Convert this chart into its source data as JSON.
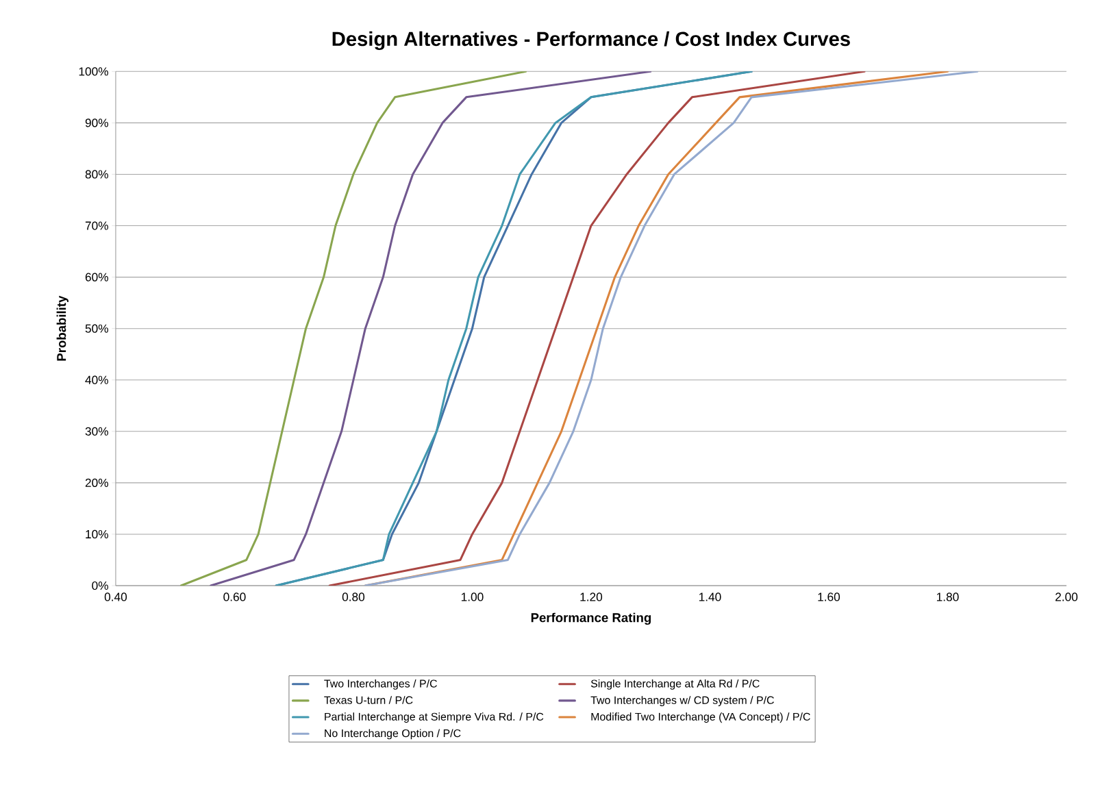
{
  "chart_data": {
    "type": "line",
    "title": "Design Alternatives - Performance / Cost Index Curves",
    "xlabel": "Performance Rating",
    "ylabel": "Probability",
    "xlim": [
      0.4,
      2.0
    ],
    "ylim": [
      0,
      100
    ],
    "xticks": [
      {
        "value": 0.4,
        "label": "0.40"
      },
      {
        "value": 0.6,
        "label": "0.60"
      },
      {
        "value": 0.8,
        "label": "0.80"
      },
      {
        "value": 1.0,
        "label": "1.00"
      },
      {
        "value": 1.2,
        "label": "1.20"
      },
      {
        "value": 1.4,
        "label": "1.40"
      },
      {
        "value": 1.6,
        "label": "1.60"
      },
      {
        "value": 1.8,
        "label": "1.80"
      },
      {
        "value": 2.0,
        "label": "2.00"
      }
    ],
    "yticks": [
      {
        "value": 0,
        "label": "0%"
      },
      {
        "value": 10,
        "label": "10%"
      },
      {
        "value": 20,
        "label": "20%"
      },
      {
        "value": 30,
        "label": "30%"
      },
      {
        "value": 40,
        "label": "40%"
      },
      {
        "value": 50,
        "label": "50%"
      },
      {
        "value": 60,
        "label": "60%"
      },
      {
        "value": 70,
        "label": "70%"
      },
      {
        "value": 80,
        "label": "80%"
      },
      {
        "value": 90,
        "label": "90%"
      },
      {
        "value": 100,
        "label": "100%"
      }
    ],
    "grid": "y",
    "legend": "bottom",
    "marker": "none",
    "line_style": "solid",
    "series": [
      {
        "name": "Two Interchanges / P/C",
        "color": "#4572a7",
        "x": [
          0.67,
          0.85,
          0.865,
          0.91,
          0.94,
          0.97,
          1.0,
          1.02,
          1.06,
          1.1,
          1.15,
          1.2,
          1.47
        ],
        "values": [
          0,
          5,
          10,
          20,
          30,
          40,
          50,
          60,
          70,
          80,
          90,
          95,
          100
        ]
      },
      {
        "name": "Single Interchange at Alta Rd / P/C",
        "color": "#aa4643",
        "x": [
          0.76,
          0.98,
          1.0,
          1.05,
          1.08,
          1.11,
          1.14,
          1.17,
          1.2,
          1.26,
          1.33,
          1.37,
          1.66
        ],
        "values": [
          0,
          5,
          10,
          20,
          30,
          40,
          50,
          60,
          70,
          80,
          90,
          95,
          100
        ]
      },
      {
        "name": "Texas U-turn / P/C",
        "color": "#89a54e",
        "x": [
          0.51,
          0.62,
          0.64,
          0.66,
          0.68,
          0.7,
          0.72,
          0.75,
          0.77,
          0.8,
          0.84,
          0.87,
          1.09
        ],
        "values": [
          0,
          5,
          10,
          20,
          30,
          40,
          50,
          60,
          70,
          80,
          90,
          95,
          100
        ]
      },
      {
        "name": "Two Interchanges w/ CD system  / P/C",
        "color": "#71588f",
        "x": [
          0.56,
          0.7,
          0.72,
          0.75,
          0.78,
          0.8,
          0.82,
          0.85,
          0.87,
          0.9,
          0.95,
          0.99,
          1.3
        ],
        "values": [
          0,
          5,
          10,
          20,
          30,
          40,
          50,
          60,
          70,
          80,
          90,
          95,
          100
        ]
      },
      {
        "name": "Partial Interchange at Siempre Viva Rd. / P/C",
        "color": "#4198af",
        "x": [
          0.67,
          0.85,
          0.86,
          0.9,
          0.94,
          0.96,
          0.99,
          1.01,
          1.05,
          1.08,
          1.14,
          1.2,
          1.47
        ],
        "values": [
          0,
          5,
          10,
          20,
          30,
          40,
          50,
          60,
          70,
          80,
          90,
          95,
          100
        ]
      },
      {
        "name": "Modified Two Interchange (VA Concept) / P/C",
        "color": "#db843d",
        "x": [
          0.82,
          1.05,
          1.07,
          1.11,
          1.15,
          1.18,
          1.21,
          1.24,
          1.28,
          1.33,
          1.41,
          1.45,
          1.8
        ],
        "values": [
          0,
          5,
          10,
          20,
          30,
          40,
          50,
          60,
          70,
          80,
          90,
          95,
          100
        ]
      },
      {
        "name": "No Interchange Option / P/C",
        "color": "#93a9cf",
        "x": [
          0.82,
          1.06,
          1.08,
          1.13,
          1.17,
          1.2,
          1.22,
          1.25,
          1.29,
          1.34,
          1.44,
          1.47,
          1.85
        ],
        "values": [
          0,
          5,
          10,
          20,
          30,
          40,
          50,
          60,
          70,
          80,
          90,
          95,
          100
        ]
      }
    ]
  }
}
